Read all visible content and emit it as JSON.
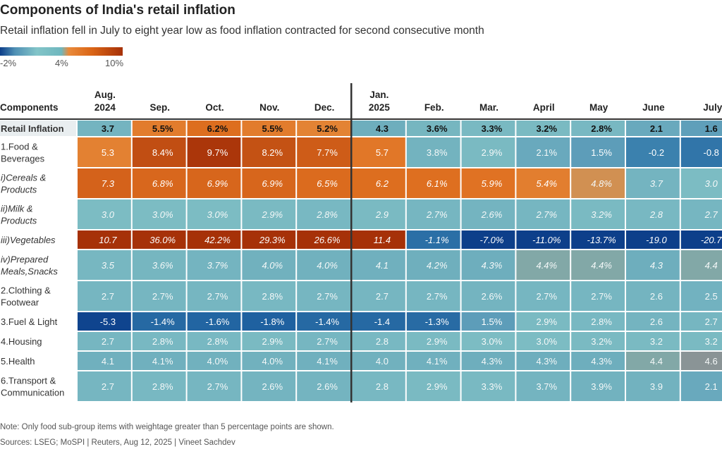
{
  "title": "Components of India's retail inflation",
  "subtitle": "Retail inflation fell in July to eight year low as food inflation contracted for second consecutive month",
  "legend": {
    "labels": [
      "-2%",
      "4%",
      "10%"
    ]
  },
  "notes": {
    "note": "Note: Only food sub-group items with weightage greater than 5 percentage points are shown.",
    "sources": "Sources: LSEG; MoSPI | Reuters, Aug 12, 2025 | Vineet Sachdev"
  },
  "chart_data": {
    "type": "heatmap",
    "title": "Components of India's retail inflation",
    "row_header": "Components",
    "columns": [
      [
        "Aug.",
        "2024"
      ],
      [
        "Sep."
      ],
      [
        "Oct."
      ],
      [
        "Nov."
      ],
      [
        "Dec."
      ],
      [
        "Jan.",
        "2025"
      ],
      [
        "Feb."
      ],
      [
        "Mar."
      ],
      [
        "April"
      ],
      [
        "May"
      ],
      [
        "June"
      ],
      [
        "July"
      ]
    ],
    "rows": [
      {
        "label": [
          "Retail Inflation"
        ],
        "style": "bold",
        "values": [
          3.7,
          5.5,
          6.2,
          5.5,
          5.2,
          4.3,
          3.6,
          3.3,
          3.2,
          2.8,
          2.1,
          1.6
        ],
        "labels": [
          "3.7",
          "5.5%",
          "6.2%",
          "5.5%",
          "5.2%",
          "4.3",
          "3.6%",
          "3.3%",
          "3.2%",
          "2.8%",
          "2.1",
          "1.6"
        ]
      },
      {
        "label": [
          "1.Food &",
          "Beverages"
        ],
        "style": "normal",
        "values": [
          5.3,
          8.4,
          9.7,
          8.2,
          7.7,
          5.7,
          3.8,
          2.9,
          2.1,
          1.5,
          -0.2,
          -0.8
        ],
        "labels": [
          "5.3",
          "8.4%",
          "9.7%",
          "8.2%",
          "7.7%",
          "5.7",
          "3.8%",
          "2.9%",
          "2.1%",
          "1.5%",
          "-0.2",
          "-0.8"
        ]
      },
      {
        "label": [
          "i)Cereals &",
          "Products"
        ],
        "style": "italic",
        "values": [
          7.3,
          6.8,
          6.9,
          6.9,
          6.5,
          6.2,
          6.1,
          5.9,
          5.4,
          4.8,
          3.7,
          3.0
        ],
        "labels": [
          "7.3",
          "6.8%",
          "6.9%",
          "6.9%",
          "6.5%",
          "6.2",
          "6.1%",
          "5.9%",
          "5.4%",
          "4.8%",
          "3.7",
          "3.0"
        ]
      },
      {
        "label": [
          "ii)Milk &",
          "Products"
        ],
        "style": "italic",
        "values": [
          3.0,
          3.0,
          3.0,
          2.9,
          2.8,
          2.9,
          2.7,
          2.6,
          2.7,
          3.2,
          2.8,
          2.7
        ],
        "labels": [
          "3.0",
          "3.0%",
          "3.0%",
          "2.9%",
          "2.8%",
          "2.9",
          "2.7%",
          "2.6%",
          "2.7%",
          "3.2%",
          "2.8",
          "2.7"
        ]
      },
      {
        "label": [
          "iii)Vegetables"
        ],
        "style": "italic",
        "values": [
          10.7,
          36.0,
          42.2,
          29.3,
          26.6,
          11.4,
          -1.1,
          -7.0,
          -11.0,
          -13.7,
          -19.0,
          -20.7
        ],
        "labels": [
          "10.7",
          "36.0%",
          "42.2%",
          "29.3%",
          "26.6%",
          "11.4",
          "-1.1%",
          "-7.0%",
          "-11.0%",
          "-13.7%",
          "-19.0",
          "-20.7"
        ]
      },
      {
        "label": [
          "iv)Prepared",
          "Meals,Snacks"
        ],
        "style": "italic",
        "values": [
          3.5,
          3.6,
          3.7,
          4.0,
          4.0,
          4.1,
          4.2,
          4.3,
          4.4,
          4.4,
          4.3,
          4.4
        ],
        "labels": [
          "3.5",
          "3.6%",
          "3.7%",
          "4.0%",
          "4.0%",
          "4.1",
          "4.2%",
          "4.3%",
          "4.4%",
          "4.4%",
          "4.3",
          "4.4"
        ]
      },
      {
        "label": [
          "2.Clothing &",
          "Footwear"
        ],
        "style": "normal",
        "values": [
          2.7,
          2.7,
          2.7,
          2.8,
          2.7,
          2.7,
          2.7,
          2.6,
          2.7,
          2.7,
          2.6,
          2.5
        ],
        "labels": [
          "2.7",
          "2.7%",
          "2.7%",
          "2.8%",
          "2.7%",
          "2.7",
          "2.7%",
          "2.6%",
          "2.7%",
          "2.7%",
          "2.6",
          "2.5"
        ]
      },
      {
        "label": [
          "3.Fuel & Light"
        ],
        "style": "normal",
        "values": [
          -5.3,
          -1.4,
          -1.6,
          -1.8,
          -1.4,
          -1.4,
          -1.3,
          1.5,
          2.9,
          2.8,
          2.6,
          2.7
        ],
        "labels": [
          "-5.3",
          "-1.4%",
          "-1.6%",
          "-1.8%",
          "-1.4%",
          "-1.4",
          "-1.3%",
          "1.5%",
          "2.9%",
          "2.8%",
          "2.6",
          "2.7"
        ]
      },
      {
        "label": [
          "4.Housing"
        ],
        "style": "normal",
        "values": [
          2.7,
          2.8,
          2.8,
          2.9,
          2.7,
          2.8,
          2.9,
          3.0,
          3.0,
          3.2,
          3.2,
          3.2
        ],
        "labels": [
          "2.7",
          "2.8%",
          "2.8%",
          "2.9%",
          "2.7%",
          "2.8",
          "2.9%",
          "3.0%",
          "3.0%",
          "3.2%",
          "3.2",
          "3.2"
        ]
      },
      {
        "label": [
          "5.Health"
        ],
        "style": "normal",
        "values": [
          4.1,
          4.1,
          4.0,
          4.0,
          4.1,
          4.0,
          4.1,
          4.3,
          4.3,
          4.3,
          4.4,
          4.6
        ],
        "labels": [
          "4.1",
          "4.1%",
          "4.0%",
          "4.0%",
          "4.1%",
          "4.0",
          "4.1%",
          "4.3%",
          "4.3%",
          "4.3%",
          "4.4",
          "4.6"
        ]
      },
      {
        "label": [
          "6.Transport &",
          "Communication"
        ],
        "style": "normal",
        "values": [
          2.7,
          2.8,
          2.7,
          2.6,
          2.6,
          2.8,
          2.9,
          3.3,
          3.7,
          3.9,
          3.9,
          2.1
        ],
        "labels": [
          "2.7",
          "2.8%",
          "2.7%",
          "2.6%",
          "2.6%",
          "2.8",
          "2.9%",
          "3.3%",
          "3.7%",
          "3.9%",
          "3.9",
          "2.1"
        ]
      }
    ],
    "color_scale": {
      "domain": [
        -2,
        4,
        10
      ],
      "colors": [
        "#0d4a93",
        "#7ec2c6",
        "#a63108"
      ]
    },
    "highlight_color": "#8a9496"
  }
}
